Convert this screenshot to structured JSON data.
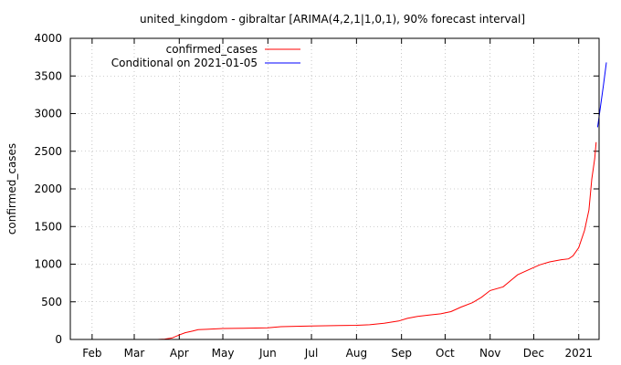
{
  "chart_data": {
    "type": "line",
    "title": "united_kingdom - gibraltar [ARIMA(4,2,1|1,0,1), 90% forecast interval]",
    "xlabel": "",
    "ylabel": "confirmed_cases",
    "xlim": [
      "2020-01-17",
      "2021-01-15"
    ],
    "ylim": [
      0,
      4000
    ],
    "grid": true,
    "legend_position": "top-left",
    "y_ticks": [
      0,
      500,
      1000,
      1500,
      2000,
      2500,
      3000,
      3500,
      4000
    ],
    "x_ticks": [
      {
        "label": "Feb",
        "date": "2020-02-01"
      },
      {
        "label": "Mar",
        "date": "2020-03-01"
      },
      {
        "label": "Apr",
        "date": "2020-04-01"
      },
      {
        "label": "May",
        "date": "2020-05-01"
      },
      {
        "label": "Jun",
        "date": "2020-06-01"
      },
      {
        "label": "Jul",
        "date": "2020-07-01"
      },
      {
        "label": "Aug",
        "date": "2020-08-01"
      },
      {
        "label": "Sep",
        "date": "2020-09-01"
      },
      {
        "label": "Oct",
        "date": "2020-10-01"
      },
      {
        "label": "Nov",
        "date": "2020-11-01"
      },
      {
        "label": "Dec",
        "date": "2020-12-01"
      },
      {
        "label": "2021",
        "date": "2021-01-01"
      }
    ],
    "series": [
      {
        "name": "confirmed_cases",
        "color": "#ff0000",
        "points": [
          [
            "2020-03-17",
            0
          ],
          [
            "2020-03-22",
            5
          ],
          [
            "2020-03-27",
            20
          ],
          [
            "2020-04-01",
            60
          ],
          [
            "2020-04-05",
            90
          ],
          [
            "2020-04-10",
            110
          ],
          [
            "2020-04-14",
            130
          ],
          [
            "2020-04-20",
            135
          ],
          [
            "2020-05-01",
            145
          ],
          [
            "2020-05-15",
            148
          ],
          [
            "2020-06-01",
            155
          ],
          [
            "2020-06-10",
            170
          ],
          [
            "2020-06-20",
            175
          ],
          [
            "2020-07-01",
            178
          ],
          [
            "2020-07-20",
            185
          ],
          [
            "2020-08-01",
            188
          ],
          [
            "2020-08-10",
            195
          ],
          [
            "2020-08-20",
            215
          ],
          [
            "2020-08-30",
            245
          ],
          [
            "2020-09-05",
            280
          ],
          [
            "2020-09-12",
            305
          ],
          [
            "2020-09-20",
            325
          ],
          [
            "2020-09-28",
            340
          ],
          [
            "2020-10-05",
            370
          ],
          [
            "2020-10-12",
            430
          ],
          [
            "2020-10-20",
            490
          ],
          [
            "2020-10-26",
            560
          ],
          [
            "2020-11-01",
            650
          ],
          [
            "2020-11-10",
            700
          ],
          [
            "2020-11-15",
            780
          ],
          [
            "2020-11-20",
            860
          ],
          [
            "2020-11-28",
            930
          ],
          [
            "2020-12-05",
            990
          ],
          [
            "2020-12-12",
            1030
          ],
          [
            "2020-12-20",
            1060
          ],
          [
            "2020-12-25",
            1070
          ],
          [
            "2020-12-28",
            1110
          ],
          [
            "2021-01-01",
            1220
          ],
          [
            "2021-01-05",
            1450
          ],
          [
            "2021-01-08",
            1720
          ],
          [
            "2021-01-10",
            2130
          ],
          [
            "2021-01-12",
            2400
          ],
          [
            "2021-01-13",
            2620
          ]
        ]
      },
      {
        "name": "Conditional on 2021-01-05",
        "color": "#0000ff",
        "points": [
          [
            "2021-01-14",
            2820
          ],
          [
            "2021-01-16",
            3100
          ],
          [
            "2021-01-18",
            3380
          ],
          [
            "2021-01-20",
            3680
          ]
        ]
      }
    ]
  }
}
